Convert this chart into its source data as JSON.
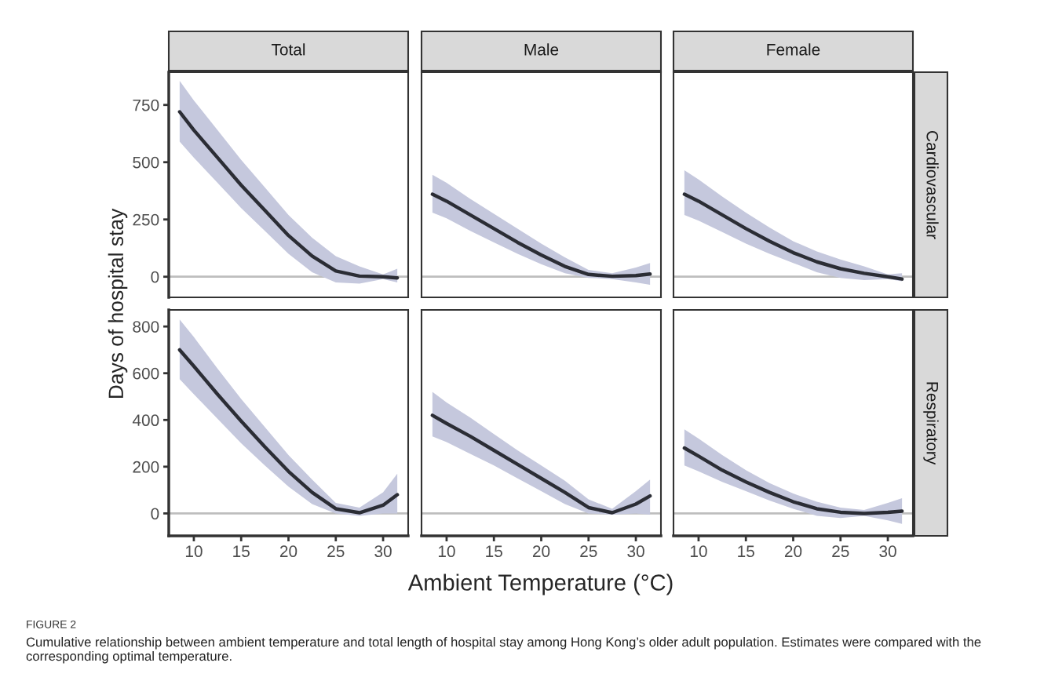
{
  "chart_data": [
    {
      "type": "line",
      "title": "Total",
      "ylabel": "Days of hospital stay",
      "x": [
        8.5,
        10,
        12.5,
        15,
        17.5,
        20,
        22.5,
        25,
        27.5,
        30,
        31.5
      ],
      "xlim": [
        7.35,
        32.65
      ],
      "xticks": [
        10,
        15,
        20,
        25,
        30
      ],
      "ylim": [
        -90,
        893
      ],
      "yticks": [
        0,
        250,
        500,
        750
      ],
      "tick_labels": "y",
      "grid": false,
      "ref_lines": [
        {
          "axis": "y",
          "value": 0,
          "color": "#bebebe"
        }
      ],
      "series": [
        {
          "color": "#2b2d35",
          "values": [
            720,
            640,
            520,
            400,
            290,
            180,
            90,
            25,
            3,
            0,
            -5
          ],
          "lower": [
            590,
            520,
            410,
            300,
            200,
            100,
            20,
            -25,
            -30,
            -10,
            -25
          ],
          "upper": [
            855,
            770,
            640,
            510,
            390,
            270,
            170,
            90,
            45,
            10,
            35
          ]
        }
      ],
      "annotations": [
        "FIGURE 2",
        "Cumulative relationship between ambient temperature and total length of hospital stay among Hong Kong’s older adult population. Estimates were compared with the corresponding optimal temperature."
      ]
    },
    {
      "type": "line",
      "title": "Male",
      "x": [
        8.5,
        10,
        12.5,
        15,
        17.5,
        20,
        22.5,
        25,
        27.5,
        30,
        31.5
      ],
      "xlim": [
        7.35,
        32.65
      ],
      "xticks": [
        10,
        15,
        20,
        25,
        30
      ],
      "ylim": [
        -90,
        893
      ],
      "yticks": [
        0,
        250,
        500,
        750
      ],
      "tick_labels": false,
      "grid": false,
      "ref_lines": [
        {
          "axis": "y",
          "value": 0,
          "color": "#bebebe"
        }
      ],
      "series": [
        {
          "color": "#2b2d35",
          "values": [
            360,
            330,
            270,
            210,
            150,
            95,
            45,
            10,
            2,
            5,
            12
          ],
          "lower": [
            280,
            255,
            200,
            150,
            100,
            55,
            15,
            -5,
            -10,
            -25,
            -35
          ],
          "upper": [
            445,
            410,
            340,
            275,
            210,
            145,
            85,
            30,
            15,
            40,
            60
          ]
        }
      ]
    },
    {
      "type": "line",
      "title": "Female",
      "y2label": "Cardiovascular",
      "x": [
        8.5,
        10,
        12.5,
        15,
        17.5,
        20,
        22.5,
        25,
        27.5,
        30,
        31.5
      ],
      "xlim": [
        7.35,
        32.65
      ],
      "xticks": [
        10,
        15,
        20,
        25,
        30
      ],
      "ylim": [
        -90,
        893
      ],
      "yticks": [
        0,
        250,
        500,
        750
      ],
      "tick_labels": false,
      "grid": false,
      "ref_lines": [
        {
          "axis": "y",
          "value": 0,
          "color": "#bebebe"
        }
      ],
      "series": [
        {
          "color": "#2b2d35",
          "values": [
            360,
            330,
            270,
            210,
            155,
            105,
            65,
            35,
            15,
            0,
            -10
          ],
          "lower": [
            270,
            245,
            195,
            145,
            100,
            60,
            20,
            -5,
            -15,
            -10,
            -20
          ],
          "upper": [
            465,
            425,
            350,
            280,
            215,
            155,
            110,
            75,
            45,
            10,
            15
          ]
        }
      ]
    },
    {
      "type": "line",
      "x": [
        8.5,
        10,
        12.5,
        15,
        17.5,
        20,
        22.5,
        25,
        27.5,
        30,
        31.5
      ],
      "xlim": [
        7.35,
        32.65
      ],
      "xticks": [
        10,
        15,
        20,
        25,
        30
      ],
      "ylim": [
        -96,
        871
      ],
      "yticks": [
        0,
        200,
        400,
        600,
        800
      ],
      "grid": false,
      "ref_lines": [
        {
          "axis": "y",
          "value": 0,
          "color": "#bebebe"
        }
      ],
      "series": [
        {
          "color": "#2b2d35",
          "values": [
            700,
            630,
            510,
            395,
            285,
            180,
            90,
            20,
            3,
            35,
            80
          ],
          "lower": [
            575,
            510,
            405,
            300,
            205,
            115,
            40,
            0,
            -10,
            0,
            0
          ],
          "upper": [
            830,
            755,
            620,
            490,
            370,
            250,
            145,
            45,
            25,
            90,
            170
          ]
        }
      ]
    },
    {
      "type": "line",
      "xlabel": "Ambient Temperature (°C)",
      "x": [
        8.5,
        10,
        12.5,
        15,
        17.5,
        20,
        22.5,
        25,
        27.5,
        30,
        31.5
      ],
      "xlim": [
        7.35,
        32.65
      ],
      "xticks": [
        10,
        15,
        20,
        25,
        30
      ],
      "ylim": [
        -96,
        871
      ],
      "yticks": [
        0,
        200,
        400,
        600,
        800
      ],
      "tick_labels": "x",
      "grid": false,
      "ref_lines": [
        {
          "axis": "y",
          "value": 0,
          "color": "#bebebe"
        }
      ],
      "series": [
        {
          "color": "#2b2d35",
          "values": [
            420,
            385,
            330,
            270,
            210,
            150,
            90,
            25,
            3,
            40,
            75
          ],
          "lower": [
            330,
            305,
            255,
            205,
            150,
            95,
            40,
            0,
            -5,
            0,
            -5
          ],
          "upper": [
            520,
            475,
            410,
            340,
            270,
            205,
            140,
            60,
            20,
            95,
            145
          ]
        }
      ]
    },
    {
      "type": "line",
      "y2label": "Respiratory",
      "x": [
        8.5,
        10,
        12.5,
        15,
        17.5,
        20,
        22.5,
        25,
        27.5,
        30,
        31.5
      ],
      "xlim": [
        7.35,
        32.65
      ],
      "xticks": [
        10,
        15,
        20,
        25,
        30
      ],
      "ylim": [
        -96,
        871
      ],
      "yticks": [
        0,
        200,
        400,
        600,
        800
      ],
      "tick_labels": "x",
      "grid": false,
      "ref_lines": [
        {
          "axis": "y",
          "value": 0,
          "color": "#bebebe"
        }
      ],
      "series": [
        {
          "color": "#2b2d35",
          "values": [
            280,
            245,
            185,
            135,
            90,
            50,
            20,
            5,
            0,
            5,
            10
          ],
          "lower": [
            205,
            180,
            135,
            95,
            55,
            20,
            -10,
            -20,
            -10,
            -30,
            -45
          ],
          "upper": [
            360,
            320,
            250,
            185,
            130,
            85,
            50,
            25,
            15,
            45,
            65
          ]
        }
      ]
    }
  ]
}
